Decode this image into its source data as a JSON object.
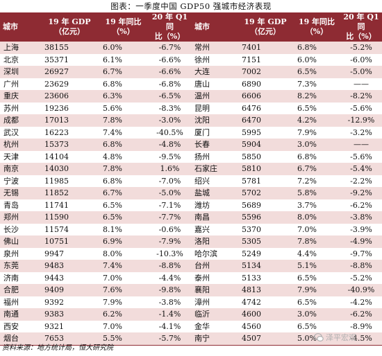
{
  "title": "图表：一季度中国 GDP50 强城市经济表现",
  "headers": {
    "city": "城市",
    "gdp": "19 年 GDP\n（亿元）",
    "growth19": "19 年同比\n（%）",
    "q1": "20 年 Q1 同\n比（%）"
  },
  "rows": [
    {
      "c1": "上海",
      "g1": "38155",
      "r1": "6.0%",
      "q1": "-6.7%",
      "c2": "常州",
      "g2": "7401",
      "r2": "6.8%",
      "q2": "-5.2%"
    },
    {
      "c1": "北京",
      "g1": "35371",
      "r1": "6.1%",
      "q1": "-6.6%",
      "c2": "徐州",
      "g2": "7151",
      "r2": "6.0%",
      "q2": "-6.0%"
    },
    {
      "c1": "深圳",
      "g1": "26927",
      "r1": "6.7%",
      "q1": "-6.6%",
      "c2": "大连",
      "g2": "7002",
      "r2": "6.5%",
      "q2": "-5.0%"
    },
    {
      "c1": "广州",
      "g1": "23629",
      "r1": "6.8%",
      "q1": "-6.8%",
      "c2": "唐山",
      "g2": "6890",
      "r2": "7.3%",
      "q2": "——"
    },
    {
      "c1": "重庆",
      "g1": "23606",
      "r1": "6.3%",
      "q1": "-6.5%",
      "c2": "温州",
      "g2": "6606",
      "r2": "8.2%",
      "q2": "-8.2%"
    },
    {
      "c1": "苏州",
      "g1": "19236",
      "r1": "5.6%",
      "q1": "-8.3%",
      "c2": "昆明",
      "g2": "6476",
      "r2": "6.5%",
      "q2": "-5.6%"
    },
    {
      "c1": "成都",
      "g1": "17013",
      "r1": "7.8%",
      "q1": "-3.0%",
      "c2": "沈阳",
      "g2": "6470",
      "r2": "4.2%",
      "q2": "-12.9%"
    },
    {
      "c1": "武汉",
      "g1": "16223",
      "r1": "7.4%",
      "q1": "-40.5%",
      "c2": "厦门",
      "g2": "5995",
      "r2": "7.9%",
      "q2": "-3.2%"
    },
    {
      "c1": "杭州",
      "g1": "15373",
      "r1": "6.8%",
      "q1": "-4.8%",
      "c2": "长春",
      "g2": "5904",
      "r2": "3.0%",
      "q2": "——"
    },
    {
      "c1": "天津",
      "g1": "14104",
      "r1": "4.8%",
      "q1": "-9.5%",
      "c2": "扬州",
      "g2": "5850",
      "r2": "6.8%",
      "q2": "-5.6%"
    },
    {
      "c1": "南京",
      "g1": "14030",
      "r1": "7.8%",
      "q1": "1.6%",
      "c2": "石家庄",
      "g2": "5810",
      "r2": "6.7%",
      "q2": "-5.4%"
    },
    {
      "c1": "宁波",
      "g1": "11985",
      "r1": "6.8%",
      "q1": "-7.0%",
      "c2": "绍兴",
      "g2": "5781",
      "r2": "7.2%",
      "q2": "-2.2%"
    },
    {
      "c1": "无锡",
      "g1": "11852",
      "r1": "6.7%",
      "q1": "-5.0%",
      "c2": "盐城",
      "g2": "5702",
      "r2": "5.8%",
      "q2": "-9.2%"
    },
    {
      "c1": "青岛",
      "g1": "11741",
      "r1": "6.5%",
      "q1": "-7.1%",
      "c2": "潍坊",
      "g2": "5689",
      "r2": "3.7%",
      "q2": "-6.2%"
    },
    {
      "c1": "郑州",
      "g1": "11590",
      "r1": "6.5%",
      "q1": "-7.7%",
      "c2": "南昌",
      "g2": "5596",
      "r2": "8.0%",
      "q2": "-3.8%"
    },
    {
      "c1": "长沙",
      "g1": "11574",
      "r1": "8.1%",
      "q1": "-0.6%",
      "c2": "嘉兴",
      "g2": "5370",
      "r2": "7.0%",
      "q2": "-3.9%"
    },
    {
      "c1": "佛山",
      "g1": "10751",
      "r1": "6.9%",
      "q1": "-7.9%",
      "c2": "洛阳",
      "g2": "5305",
      "r2": "7.8%",
      "q2": "-4.9%"
    },
    {
      "c1": "泉州",
      "g1": "9947",
      "r1": "8.0%",
      "q1": "-10.3%",
      "c2": "哈尔滨",
      "g2": "5249",
      "r2": "4.4%",
      "q2": "-9.7%"
    },
    {
      "c1": "东莞",
      "g1": "9483",
      "r1": "7.4%",
      "q1": "-8.8%",
      "c2": "台州",
      "g2": "5134",
      "r2": "5.1%",
      "q2": "-8.8%"
    },
    {
      "c1": "济南",
      "g1": "9443",
      "r1": "7.0%",
      "q1": "-4.4%",
      "c2": "泰州",
      "g2": "5133",
      "r2": "6.5%",
      "q2": "-5.2%"
    },
    {
      "c1": "合肥",
      "g1": "9409",
      "r1": "7.6%",
      "q1": "-9.8%",
      "c2": "襄阳",
      "g2": "4813",
      "r2": "7.9%",
      "q2": "-40.9%"
    },
    {
      "c1": "福州",
      "g1": "9392",
      "r1": "7.9%",
      "q1": "-3.8%",
      "c2": "漳州",
      "g2": "4742",
      "r2": "6.5%",
      "q2": "-4.2%"
    },
    {
      "c1": "南通",
      "g1": "9383",
      "r1": "6.2%",
      "q1": "-1.4%",
      "c2": "临沂",
      "g2": "4600",
      "r2": "3.0%",
      "q2": "-6.2%"
    },
    {
      "c1": "西安",
      "g1": "9321",
      "r1": "7.0%",
      "q1": "-4.1%",
      "c2": "金华",
      "g2": "4560",
      "r2": "6.5%",
      "q2": "-8.9%"
    },
    {
      "c1": "烟台",
      "g1": "7653",
      "r1": "5.5%",
      "q1": "-5.7%",
      "c2": "南宁",
      "g2": "4507",
      "r2": "5.0%",
      "q2": "-4.5%"
    }
  ],
  "source": "资料来源：地方统计局，恒大研究院",
  "watermark": "泽平宏观"
}
